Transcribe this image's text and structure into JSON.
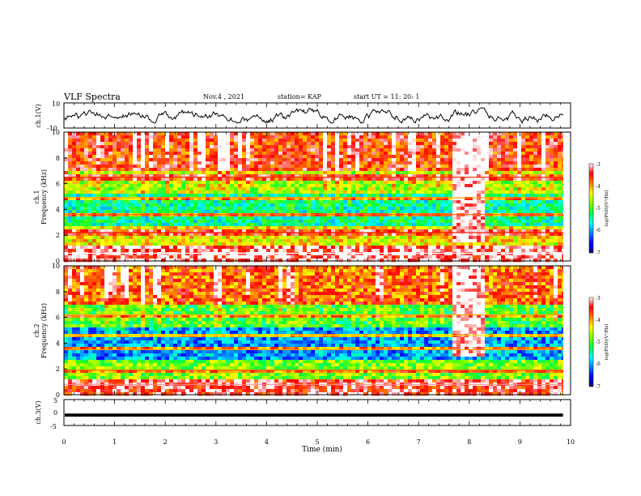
{
  "header": {
    "title": "VLF Spectra",
    "date": "Nov.4 , 2021",
    "station": "station= KAP",
    "start": "start UT = 11: 20: 1"
  },
  "chart_data": [
    {
      "type": "line",
      "panel": "ch1-waveform",
      "ylabel": "ch.1(V)",
      "ylim": [
        -10,
        10
      ],
      "ytick_labels": [
        "10",
        "-10"
      ],
      "xlim": [
        0,
        9.85
      ],
      "description_values": "noisy waveform roughly between -5 and 5 V",
      "series": [
        {
          "x_start": 0,
          "x_end": 9.85,
          "amplitude_range": [
            -6,
            6
          ],
          "color": "#000000"
        }
      ]
    },
    {
      "type": "heatmap",
      "panel": "ch1-spectrogram",
      "ylabel_line1": "ch.1",
      "ylabel_line2": "Frequency (kHz)",
      "ylim": [
        0,
        10
      ],
      "ytick_labels": [
        "0",
        "2",
        "4",
        "6",
        "8",
        "10"
      ],
      "xlim": [
        0,
        9.85
      ],
      "colorbar": {
        "label": "log(PSD)(V²/Hz)",
        "range": [
          -7,
          -3
        ],
        "tick_labels": [
          "-3",
          "-4",
          "-5",
          "-6",
          "-7"
        ],
        "colors": [
          "#000088",
          "#0000ff",
          "#0080ff",
          "#00ffff",
          "#00ff40",
          "#80ff00",
          "#ffff00",
          "#ff8000",
          "#ff0000",
          "#ffffff"
        ]
      },
      "features": [
        {
          "kind": "band",
          "f_low": 0.0,
          "f_high": 1.2,
          "log_psd": -3.2
        },
        {
          "kind": "band",
          "f_low": 1.2,
          "f_high": 2.8,
          "log_psd": -4.3
        },
        {
          "kind": "band",
          "f_low": 2.8,
          "f_high": 5.2,
          "log_psd": -5.4
        },
        {
          "kind": "band",
          "f_low": 5.2,
          "f_high": 7.0,
          "log_psd": -4.6
        },
        {
          "kind": "band",
          "f_low": 7.0,
          "f_high": 10.0,
          "log_psd": -3.6
        },
        {
          "kind": "line",
          "freq": 0.6,
          "log_psd": -3.0
        },
        {
          "kind": "line",
          "freq": 2.2,
          "log_psd": -3.5
        },
        {
          "kind": "line",
          "freq": 3.6,
          "log_psd": -3.8
        },
        {
          "kind": "line",
          "freq": 4.9,
          "log_psd": -4.0
        },
        {
          "kind": "line",
          "freq": 6.5,
          "log_psd": -3.6
        },
        {
          "kind": "burst",
          "t_start": 7.6,
          "t_end": 8.3,
          "f_low": 1.5,
          "f_high": 10.0,
          "log_psd": -3.0
        }
      ]
    },
    {
      "type": "heatmap",
      "panel": "ch2-spectrogram",
      "ylabel_line1": "ch.2",
      "ylabel_line2": "Frequency (kHz)",
      "ylim": [
        0,
        10
      ],
      "ytick_labels": [
        "0",
        "2",
        "4",
        "6",
        "8",
        "10"
      ],
      "xlim": [
        0,
        9.85
      ],
      "colorbar": {
        "label": "log(PSD)(V²/Hz)",
        "range": [
          -7,
          -3
        ],
        "tick_labels": [
          "-3",
          "-4",
          "-5",
          "-6",
          "-7"
        ],
        "colors": [
          "#000088",
          "#0000ff",
          "#0080ff",
          "#00ffff",
          "#00ff40",
          "#80ff00",
          "#ffff00",
          "#ff8000",
          "#ff0000",
          "#ffffff"
        ]
      },
      "features": [
        {
          "kind": "band",
          "f_low": 0.0,
          "f_high": 1.2,
          "log_psd": -3.4
        },
        {
          "kind": "band",
          "f_low": 1.2,
          "f_high": 2.8,
          "log_psd": -4.8
        },
        {
          "kind": "band",
          "f_low": 2.8,
          "f_high": 5.2,
          "log_psd": -6.0
        },
        {
          "kind": "band",
          "f_low": 5.2,
          "f_high": 7.0,
          "log_psd": -5.0
        },
        {
          "kind": "band",
          "f_low": 7.0,
          "f_high": 10.0,
          "log_psd": -3.8
        },
        {
          "kind": "line",
          "freq": 0.8,
          "log_psd": -3.2
        },
        {
          "kind": "line",
          "freq": 1.9,
          "log_psd": -3.8
        },
        {
          "kind": "line",
          "freq": 3.5,
          "log_psd": -4.0
        },
        {
          "kind": "line",
          "freq": 4.6,
          "log_psd": -4.2
        },
        {
          "kind": "line",
          "freq": 6.2,
          "log_psd": -4.0
        },
        {
          "kind": "burst",
          "t_start": 7.6,
          "t_end": 8.3,
          "f_low": 3.0,
          "f_high": 10.0,
          "log_psd": -3.0
        }
      ]
    },
    {
      "type": "line",
      "panel": "ch3-waveform",
      "ylabel": "ch.3(V)",
      "ylim": [
        -5,
        5
      ],
      "ytick_labels": [
        "5",
        "0",
        "-5"
      ],
      "xlim": [
        0,
        9.85
      ],
      "xlabel": "Time (min)",
      "xtick_labels": [
        "0",
        "1",
        "2",
        "3",
        "4",
        "5",
        "6",
        "7",
        "8",
        "9",
        "10"
      ],
      "series": [
        {
          "x_start": 0,
          "x_end": 9.85,
          "value": -1.0,
          "thickness_v": 1.2,
          "color": "#000000"
        }
      ]
    }
  ]
}
